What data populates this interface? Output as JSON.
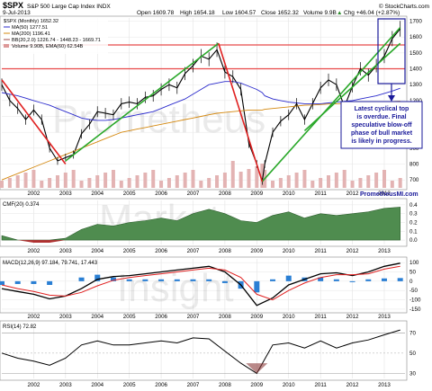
{
  "header": {
    "symbol": "$SPX",
    "name": "S&P 500 Large Cap Index INDX",
    "source": "© StockCharts.com",
    "date": "9-Jul-2013",
    "open": "Open 1609.78",
    "high": "High 1654.18",
    "low": "Low 1604.57",
    "close": "Close 1652.32",
    "volume": "Volume 9.9B",
    "chg": "Chg +46.04 (+2.87%)",
    "chg_arrow": "▲",
    "chg_color": "#2a8a2a"
  },
  "legend": {
    "price": "$SPX (Monthly) 1652.32",
    "ma50": "MA(50) 1277.51",
    "ma200": "MA(200) 1196.41",
    "bb": "BB(20,2.0) 1226.74 - 1448.23 - 1669.71",
    "vol": "Volume 9.90B, EMA(60) 62.54B"
  },
  "watermark": {
    "line1": "Prometheus",
    "line2": "Market",
    "line3": "Insight",
    "site": "PrometheusMI.com"
  },
  "annotation": {
    "text": [
      "Latest cyclical top",
      "is overdue. Final",
      "speculative blow-off",
      "phase of bull market",
      "is likely in progress."
    ]
  },
  "colors": {
    "price": "#000000",
    "ma50": "#2b2bcc",
    "ma200": "#d4880f",
    "bb": "#9b4a4a",
    "hline": "#e84a4a",
    "trend_green": "#2aa82a",
    "trend_red": "#e02020",
    "cmf_fill": "#4f8c4f",
    "cmf_neg": "#b03030",
    "macd_line": "#000000",
    "signal_line": "#e02020",
    "hist": "#2a7fd4",
    "rsi_neg": "#8a3a3a",
    "annot": "#1a1a9a"
  },
  "chart_data": [
    {
      "type": "line",
      "panel": "price",
      "xlabel": "",
      "ylabel": "",
      "x_ticks": [
        "2002",
        "2003",
        "2004",
        "2005",
        "2006",
        "2007",
        "2008",
        "2009",
        "2010",
        "2011",
        "2012",
        "2013"
      ],
      "y_ticks": [
        700,
        800,
        900,
        1000,
        1100,
        1200,
        1300,
        1400,
        1500,
        1600,
        1700
      ],
      "ylim": [
        650,
        1720
      ],
      "x": [
        2001.0,
        2001.25,
        2001.5,
        2001.75,
        2002.0,
        2002.25,
        2002.5,
        2002.75,
        2003.0,
        2003.25,
        2003.5,
        2003.75,
        2004.0,
        2004.25,
        2004.5,
        2004.75,
        2005.0,
        2005.25,
        2005.5,
        2005.75,
        2006.0,
        2006.25,
        2006.5,
        2006.75,
        2007.0,
        2007.25,
        2007.5,
        2007.75,
        2008.0,
        2008.25,
        2008.5,
        2008.75,
        2009.0,
        2009.17,
        2009.25,
        2009.5,
        2009.75,
        2010.0,
        2010.25,
        2010.5,
        2010.75,
        2011.0,
        2011.25,
        2011.5,
        2011.75,
        2012.0,
        2012.25,
        2012.5,
        2012.75,
        2013.0,
        2013.25,
        2013.5
      ],
      "series": [
        {
          "name": "$SPX",
          "values": [
            1300,
            1200,
            1150,
            1080,
            1140,
            1080,
            900,
            820,
            840,
            860,
            990,
            1050,
            1130,
            1120,
            1110,
            1180,
            1190,
            1180,
            1220,
            1230,
            1270,
            1300,
            1280,
            1370,
            1420,
            1480,
            1460,
            1520,
            1380,
            1350,
            1270,
            930,
            800,
            690,
            800,
            1000,
            1070,
            1110,
            1180,
            1080,
            1180,
            1280,
            1330,
            1300,
            1160,
            1290,
            1400,
            1360,
            1420,
            1480,
            1590,
            1652
          ]
        },
        {
          "name": "MA(50)",
          "values": [
            1250,
            1240,
            1230,
            1215,
            1200,
            1185,
            1170,
            1150,
            1130,
            1110,
            1090,
            1080,
            1075,
            1075,
            1080,
            1090,
            1100,
            1110,
            1120,
            1130,
            1150,
            1170,
            1190,
            1210,
            1240,
            1270,
            1300,
            1310,
            1320,
            1320,
            1310,
            1290,
            1270,
            1250,
            1230,
            1210,
            1200,
            1190,
            1185,
            1180,
            1180,
            1180,
            1185,
            1190,
            1195,
            1200,
            1210,
            1220,
            1230,
            1245,
            1260,
            1277
          ]
        },
        {
          "name": "MA(200)",
          "values": [
            700,
            720,
            740,
            760,
            780,
            800,
            820,
            840,
            860,
            880,
            900,
            920,
            940,
            960,
            980,
            1000,
            1010,
            1020,
            1030,
            1040,
            1050,
            1060,
            1070,
            1080,
            1090,
            1100,
            1110,
            1120,
            1125,
            1130,
            1135,
            1140,
            1140,
            1140,
            1145,
            1150,
            1155,
            1160,
            1165,
            1170,
            1172,
            1175,
            1178,
            1180,
            1182,
            1184,
            1186,
            1188,
            1190,
            1192,
            1194,
            1196
          ]
        }
      ],
      "trendlines": [
        {
          "color": "green",
          "from": [
            2003.0,
            820
          ],
          "to": [
            2007.8,
            1560
          ]
        },
        {
          "color": "green",
          "from": [
            2009.17,
            690
          ],
          "to": [
            2013.5,
            1660
          ]
        },
        {
          "color": "green",
          "from": [
            2010.5,
            1010
          ],
          "to": [
            2013.5,
            1560
          ]
        },
        {
          "color": "red",
          "from": [
            2001.0,
            1330
          ],
          "to": [
            2003.0,
            800
          ]
        },
        {
          "color": "red",
          "from": [
            2007.8,
            1560
          ],
          "to": [
            2009.17,
            690
          ]
        }
      ],
      "hlines": [
        1550,
        1400
      ]
    },
    {
      "type": "area",
      "panel": "cmf",
      "title": "CMF(20) 0.374",
      "y_ticks": [
        0.0,
        0.1,
        0.2,
        0.3,
        0.4
      ],
      "ylim": [
        -0.05,
        0.45
      ],
      "x": [
        2001.0,
        2001.5,
        2002.0,
        2002.5,
        2003.0,
        2003.5,
        2004.0,
        2004.5,
        2005.0,
        2005.5,
        2006.0,
        2006.5,
        2007.0,
        2007.5,
        2008.0,
        2008.5,
        2009.0,
        2009.5,
        2010.0,
        2010.5,
        2011.0,
        2011.5,
        2012.0,
        2012.5,
        2013.0,
        2013.5
      ],
      "values": [
        0.05,
        0.0,
        -0.03,
        -0.03,
        0.02,
        0.12,
        0.18,
        0.16,
        0.2,
        0.22,
        0.25,
        0.22,
        0.3,
        0.35,
        0.3,
        0.22,
        0.2,
        0.28,
        0.32,
        0.25,
        0.3,
        0.28,
        0.3,
        0.32,
        0.36,
        0.374
      ]
    },
    {
      "type": "line",
      "panel": "macd",
      "title": "MACD(12,26,9) 97.184, 79.741, 17.443",
      "y_ticks": [
        -150,
        -100,
        -50,
        0,
        50,
        100
      ],
      "ylim": [
        -160,
        120
      ],
      "x": [
        2001.0,
        2001.5,
        2002.0,
        2002.5,
        2003.0,
        2003.5,
        2004.0,
        2004.5,
        2005.0,
        2005.5,
        2006.0,
        2006.5,
        2007.0,
        2007.5,
        2008.0,
        2008.5,
        2009.0,
        2009.5,
        2010.0,
        2010.5,
        2011.0,
        2011.5,
        2012.0,
        2012.5,
        2013.0,
        2013.5
      ],
      "series": [
        {
          "name": "MACD",
          "values": [
            -40,
            -55,
            -70,
            -95,
            -80,
            -40,
            10,
            25,
            30,
            40,
            50,
            60,
            70,
            80,
            50,
            -20,
            -130,
            -90,
            -20,
            10,
            40,
            45,
            30,
            50,
            80,
            97
          ]
        },
        {
          "name": "Signal",
          "values": [
            -20,
            -40,
            -55,
            -75,
            -80,
            -60,
            -25,
            5,
            20,
            30,
            40,
            50,
            60,
            70,
            60,
            20,
            -70,
            -100,
            -50,
            -10,
            20,
            35,
            35,
            40,
            65,
            80
          ]
        }
      ],
      "histogram": [
        -20,
        -15,
        -15,
        -20,
        0,
        20,
        35,
        20,
        10,
        10,
        10,
        10,
        10,
        10,
        -10,
        -40,
        -60,
        10,
        30,
        20,
        20,
        10,
        -5,
        10,
        15,
        17
      ]
    },
    {
      "type": "line",
      "panel": "rsi",
      "title": "RSI(14) 72.82",
      "y_ticks": [
        30,
        50,
        70
      ],
      "ylim": [
        25,
        80
      ],
      "x": [
        2001.0,
        2001.5,
        2002.0,
        2002.5,
        2003.0,
        2003.5,
        2004.0,
        2004.5,
        2005.0,
        2005.5,
        2006.0,
        2006.5,
        2007.0,
        2007.5,
        2008.0,
        2008.5,
        2009.0,
        2009.5,
        2010.0,
        2010.5,
        2011.0,
        2011.5,
        2012.0,
        2012.5,
        2013.0,
        2013.5
      ],
      "values": [
        50,
        45,
        42,
        38,
        45,
        58,
        62,
        58,
        58,
        60,
        62,
        60,
        65,
        64,
        52,
        40,
        30,
        58,
        60,
        55,
        62,
        55,
        60,
        63,
        68,
        72.82
      ]
    }
  ]
}
